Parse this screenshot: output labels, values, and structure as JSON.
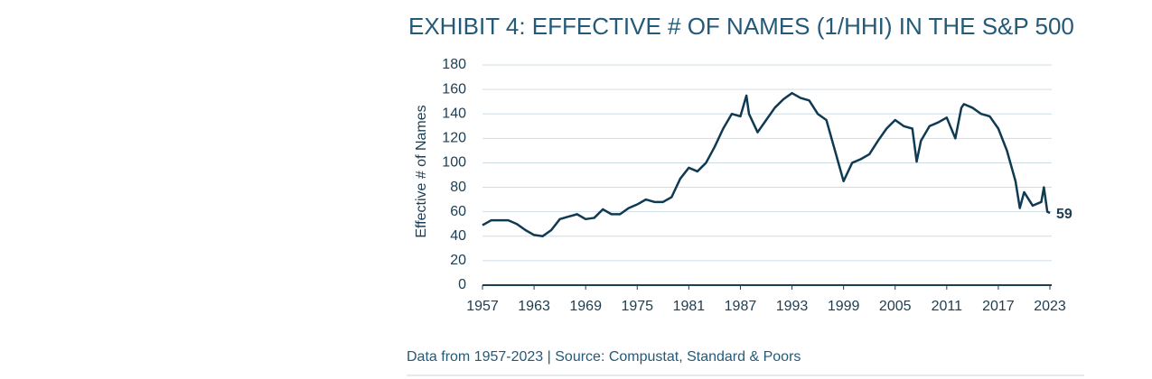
{
  "chart_data": {
    "type": "line",
    "title": "EXHIBIT 4: EFFECTIVE # OF NAMES (1/HHI) IN THE S&P 500",
    "y_label": "Effective # of Names",
    "footnote": "Data from 1957-2023 | Source: Compustat, Standard & Poors",
    "x": [
      1957,
      1958,
      1959,
      1960,
      1961,
      1962,
      1963,
      1964,
      1965,
      1966,
      1967,
      1968,
      1969,
      1970,
      1971,
      1972,
      1973,
      1974,
      1975,
      1976,
      1977,
      1978,
      1979,
      1980,
      1981,
      1982,
      1983,
      1984,
      1985,
      1986,
      1987,
      1987.7,
      1988,
      1989,
      1990,
      1991,
      1992,
      1993,
      1994,
      1995,
      1996,
      1997,
      1998,
      1999,
      2000,
      2001,
      2002,
      2003,
      2004,
      2005,
      2006,
      2007,
      2007.5,
      2008,
      2009,
      2010,
      2011,
      2012,
      2012.7,
      2013,
      2014,
      2015,
      2016,
      2017,
      2018,
      2019,
      2019.5,
      2020,
      2021,
      2022,
      2022.3,
      2022.7,
      2023
    ],
    "series": [
      {
        "name": "Effective # of Names",
        "color": "#0f3a52",
        "values": [
          49,
          53,
          53,
          53,
          50,
          45,
          41,
          40,
          45,
          54,
          56,
          58,
          54,
          55,
          62,
          58,
          58,
          63,
          66,
          70,
          68,
          68,
          72,
          87,
          96,
          93,
          100,
          113,
          128,
          140,
          138,
          155,
          140,
          125,
          135,
          145,
          152,
          157,
          153,
          151,
          140,
          135,
          110,
          85,
          100,
          103,
          107,
          118,
          128,
          135,
          130,
          128,
          101,
          118,
          130,
          133,
          137,
          120,
          145,
          148,
          145,
          140,
          138,
          128,
          110,
          85,
          63,
          76,
          65,
          68,
          80,
          60,
          59
        ]
      }
    ],
    "xlim": [
      1957,
      2023
    ],
    "xticks": [
      1957,
      1963,
      1969,
      1975,
      1981,
      1987,
      1993,
      1999,
      2005,
      2011,
      2017,
      2023
    ],
    "ylim": [
      0,
      180
    ],
    "yticks": [
      0,
      20,
      40,
      60,
      80,
      100,
      120,
      140,
      160,
      180
    ],
    "grid": true
  }
}
